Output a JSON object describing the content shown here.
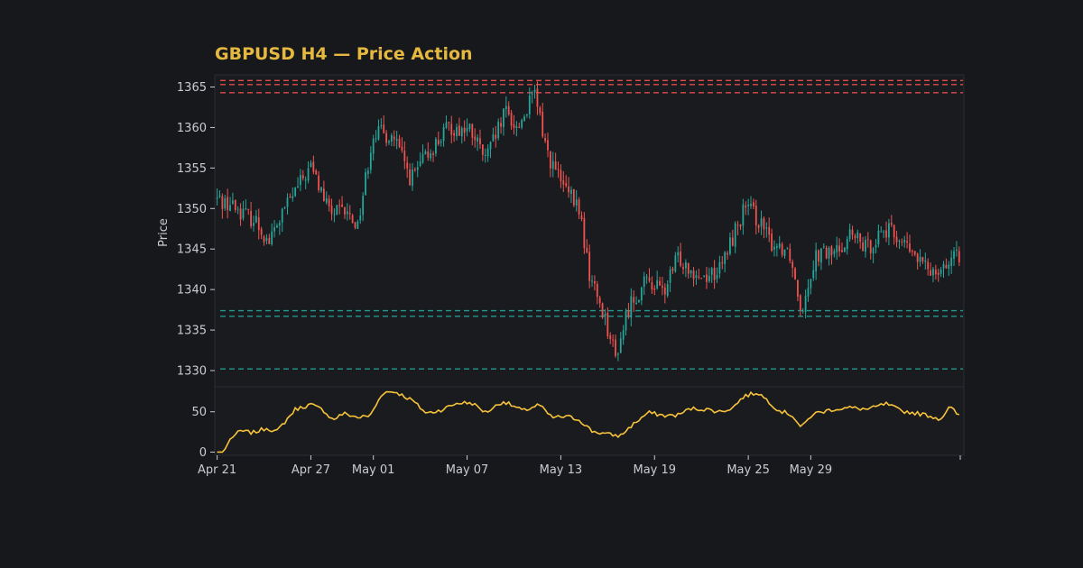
{
  "chart_data": {
    "type": "candlestick",
    "title": "GBPUSD H4 — Price Action",
    "ylabel": "Price",
    "price_ylim": [
      1328,
      1366.5
    ],
    "indicator_ylim": [
      -4,
      81
    ],
    "price_ticks": [
      1330,
      1335,
      1340,
      1345,
      1350,
      1355,
      1360,
      1365
    ],
    "indicator_ticks": [
      0,
      50
    ],
    "x_ticks": [
      {
        "label": "Apr 21",
        "day": 0
      },
      {
        "label": "Apr 27",
        "day": 6
      },
      {
        "label": "May 01",
        "day": 10
      },
      {
        "label": "May 07",
        "day": 16
      },
      {
        "label": "May 13",
        "day": 22
      },
      {
        "label": "May 19",
        "day": 28
      },
      {
        "label": "May 25",
        "day": 34
      },
      {
        "label": "May 29",
        "day": 38
      }
    ],
    "x_range_days": [
      -0.15,
      47.8
    ],
    "resistance_levels": [
      1365.8,
      1365.3,
      1364.3
    ],
    "support_levels": [
      1337.4,
      1336.7,
      1330.2
    ],
    "colors": {
      "up": "#26a69a",
      "down": "#ef5350",
      "title": "#e5b840",
      "indicator": "#f7c33a",
      "text": "#c9cbd1",
      "grid_border": "#2b2d33",
      "panel": "#1a1b1f"
    },
    "price_close_path": [
      [
        0,
        1351.2
      ],
      [
        1.0,
        1350.4
      ],
      [
        2.5,
        1348.4
      ],
      [
        3.3,
        1345.8
      ],
      [
        4.5,
        1350.6
      ],
      [
        6.0,
        1355.2
      ],
      [
        7.2,
        1349.5
      ],
      [
        8.2,
        1349.5
      ],
      [
        9.0,
        1348.0
      ],
      [
        10.0,
        1359.5
      ],
      [
        11.3,
        1358.8
      ],
      [
        12.4,
        1353.6
      ],
      [
        13.6,
        1357.0
      ],
      [
        14.8,
        1360.0
      ],
      [
        16.2,
        1359.6
      ],
      [
        17.2,
        1356.0
      ],
      [
        18.5,
        1362.0
      ],
      [
        19.2,
        1359.8
      ],
      [
        20.3,
        1364.2
      ],
      [
        21.2,
        1356.5
      ],
      [
        22.2,
        1352.5
      ],
      [
        23.2,
        1349.8
      ],
      [
        23.8,
        1342.0
      ],
      [
        24.8,
        1336.8
      ],
      [
        25.5,
        1331.6
      ],
      [
        26.4,
        1338.2
      ],
      [
        27.6,
        1341.2
      ],
      [
        28.6,
        1339.6
      ],
      [
        29.5,
        1344.0
      ],
      [
        31.0,
        1341.6
      ],
      [
        32.2,
        1342.4
      ],
      [
        33.0,
        1346.5
      ],
      [
        33.8,
        1350.2
      ],
      [
        34.6,
        1348.8
      ],
      [
        35.4,
        1345.8
      ],
      [
        36.6,
        1345.0
      ],
      [
        37.4,
        1337.6
      ],
      [
        38.3,
        1344.3
      ],
      [
        39.6,
        1344.6
      ],
      [
        40.5,
        1346.8
      ],
      [
        41.6,
        1345.0
      ],
      [
        42.6,
        1347.5
      ],
      [
        43.6,
        1346.5
      ],
      [
        44.5,
        1344.4
      ],
      [
        45.5,
        1342.4
      ],
      [
        46.4,
        1343.0
      ],
      [
        47.5,
        1344.0
      ]
    ],
    "indicator_path": [
      [
        0,
        0
      ],
      [
        0.4,
        0
      ],
      [
        0.9,
        18
      ],
      [
        1.5,
        26
      ],
      [
        2.3,
        24
      ],
      [
        3.2,
        30
      ],
      [
        3.8,
        25
      ],
      [
        5.0,
        53
      ],
      [
        6.0,
        59
      ],
      [
        6.8,
        52
      ],
      [
        7.4,
        40
      ],
      [
        8.1,
        48
      ],
      [
        9.0,
        43
      ],
      [
        9.8,
        45
      ],
      [
        10.6,
        74
      ],
      [
        11.4,
        75
      ],
      [
        12.5,
        64
      ],
      [
        13.4,
        48
      ],
      [
        14.3,
        52
      ],
      [
        15.4,
        61
      ],
      [
        16.3,
        61
      ],
      [
        17.2,
        49
      ],
      [
        18.3,
        63
      ],
      [
        19.6,
        51
      ],
      [
        20.6,
        59
      ],
      [
        21.4,
        43
      ],
      [
        22.4,
        44
      ],
      [
        23.2,
        40
      ],
      [
        24.0,
        26
      ],
      [
        25.0,
        22
      ],
      [
        25.8,
        20
      ],
      [
        26.6,
        34
      ],
      [
        27.6,
        49
      ],
      [
        28.7,
        45
      ],
      [
        29.5,
        46
      ],
      [
        30.3,
        54
      ],
      [
        31.3,
        53
      ],
      [
        32.2,
        50
      ],
      [
        33.0,
        55
      ],
      [
        33.7,
        69
      ],
      [
        34.6,
        74
      ],
      [
        35.3,
        63
      ],
      [
        35.9,
        52
      ],
      [
        36.8,
        46
      ],
      [
        37.4,
        30
      ],
      [
        38.1,
        47
      ],
      [
        39.4,
        53
      ],
      [
        40.5,
        55
      ],
      [
        41.7,
        53
      ],
      [
        42.8,
        60
      ],
      [
        43.8,
        51
      ],
      [
        44.8,
        48
      ],
      [
        45.4,
        46
      ],
      [
        46.3,
        41
      ],
      [
        46.9,
        56
      ],
      [
        47.5,
        45
      ]
    ]
  }
}
